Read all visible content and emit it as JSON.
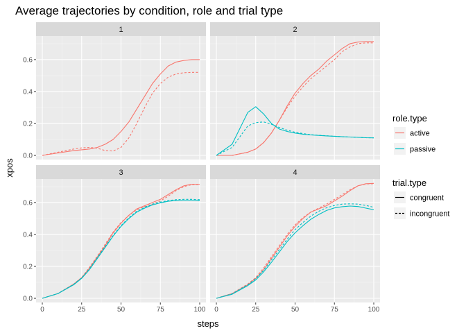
{
  "chart_data": {
    "type": "line",
    "title": "Average trajectories by condition, role and trial type",
    "xlabel": "steps",
    "ylabel": "xpos",
    "xlim": [
      0,
      100
    ],
    "ylim": [
      0,
      0.72
    ],
    "x_ticks": [
      0,
      25,
      50,
      75,
      100
    ],
    "y_ticks": [
      0.0,
      0.2,
      0.4,
      0.6
    ],
    "y_tick_labels": [
      "0.0",
      "0.2",
      "0.4",
      "0.6"
    ],
    "grid": true,
    "facet_layout": "2x2",
    "legend_placement": "right",
    "colors": {
      "active": "#F8766D",
      "passive": "#00BFC4"
    },
    "legends": [
      {
        "title": "role.type",
        "entries": [
          {
            "label": "active",
            "color": "#F8766D"
          },
          {
            "label": "passive",
            "color": "#00BFC4"
          }
        ]
      },
      {
        "title": "trial.type",
        "entries": [
          {
            "label": "congruent",
            "linetype": "solid"
          },
          {
            "label": "incongruent",
            "linetype": "dashed"
          }
        ]
      }
    ],
    "x": [
      0,
      10,
      20,
      25,
      30,
      35,
      40,
      45,
      50,
      55,
      60,
      65,
      70,
      75,
      80,
      85,
      90,
      95,
      100
    ],
    "panels": [
      {
        "label": "1",
        "series": [
          {
            "role": "active",
            "trial": "congruent",
            "values": [
              0.0,
              0.015,
              0.03,
              0.035,
              0.04,
              0.05,
              0.07,
              0.1,
              0.15,
              0.21,
              0.29,
              0.37,
              0.45,
              0.51,
              0.56,
              0.585,
              0.595,
              0.6,
              0.6
            ]
          },
          {
            "role": "active",
            "trial": "incongruent",
            "values": [
              0.0,
              0.02,
              0.04,
              0.047,
              0.05,
              0.045,
              0.03,
              0.028,
              0.05,
              0.11,
              0.2,
              0.3,
              0.39,
              0.45,
              0.49,
              0.51,
              0.518,
              0.52,
              0.52
            ]
          }
        ]
      },
      {
        "label": "2",
        "series": [
          {
            "role": "active",
            "trial": "congruent",
            "values": [
              0.0,
              0.0,
              0.02,
              0.04,
              0.08,
              0.14,
              0.22,
              0.31,
              0.39,
              0.45,
              0.5,
              0.54,
              0.59,
              0.63,
              0.67,
              0.7,
              0.71,
              0.713,
              0.713
            ]
          },
          {
            "role": "active",
            "trial": "incongruent",
            "values": [
              0.0,
              0.0,
              0.02,
              0.04,
              0.08,
              0.14,
              0.22,
              0.3,
              0.37,
              0.43,
              0.48,
              0.52,
              0.56,
              0.6,
              0.65,
              0.68,
              0.7,
              0.705,
              0.705
            ]
          },
          {
            "role": "passive",
            "trial": "congruent",
            "values": [
              0.0,
              0.07,
              0.27,
              0.305,
              0.26,
              0.2,
              0.165,
              0.15,
              0.14,
              0.133,
              0.128,
              0.125,
              0.122,
              0.12,
              0.117,
              0.115,
              0.113,
              0.111,
              0.11
            ]
          },
          {
            "role": "passive",
            "trial": "incongruent",
            "values": [
              0.0,
              0.05,
              0.185,
              0.205,
              0.21,
              0.195,
              0.175,
              0.158,
              0.145,
              0.137,
              0.13,
              0.126,
              0.123,
              0.12,
              0.117,
              0.115,
              0.113,
              0.111,
              0.11
            ]
          }
        ]
      },
      {
        "label": "3",
        "series": [
          {
            "role": "active",
            "trial": "congruent",
            "values": [
              0.0,
              0.03,
              0.09,
              0.13,
              0.19,
              0.26,
              0.33,
              0.41,
              0.47,
              0.52,
              0.56,
              0.58,
              0.6,
              0.62,
              0.65,
              0.68,
              0.705,
              0.715,
              0.715
            ]
          },
          {
            "role": "active",
            "trial": "incongruent",
            "values": [
              0.0,
              0.03,
              0.09,
              0.13,
              0.195,
              0.265,
              0.34,
              0.415,
              0.475,
              0.52,
              0.555,
              0.575,
              0.59,
              0.61,
              0.64,
              0.675,
              0.7,
              0.712,
              0.713
            ]
          },
          {
            "role": "passive",
            "trial": "congruent",
            "values": [
              0.0,
              0.03,
              0.085,
              0.125,
              0.18,
              0.25,
              0.32,
              0.39,
              0.45,
              0.5,
              0.54,
              0.565,
              0.585,
              0.598,
              0.608,
              0.613,
              0.615,
              0.615,
              0.612
            ]
          },
          {
            "role": "passive",
            "trial": "incongruent",
            "values": [
              0.0,
              0.03,
              0.088,
              0.128,
              0.185,
              0.255,
              0.325,
              0.395,
              0.455,
              0.505,
              0.545,
              0.57,
              0.59,
              0.603,
              0.612,
              0.618,
              0.62,
              0.62,
              0.618
            ]
          }
        ]
      },
      {
        "label": "4",
        "series": [
          {
            "role": "active",
            "trial": "congruent",
            "values": [
              0.0,
              0.03,
              0.085,
              0.125,
              0.18,
              0.25,
              0.32,
              0.39,
              0.45,
              0.5,
              0.54,
              0.56,
              0.58,
              0.61,
              0.64,
              0.675,
              0.705,
              0.718,
              0.72
            ]
          },
          {
            "role": "active",
            "trial": "incongruent",
            "values": [
              0.0,
              0.03,
              0.09,
              0.13,
              0.19,
              0.26,
              0.33,
              0.4,
              0.46,
              0.505,
              0.54,
              0.565,
              0.59,
              0.62,
              0.65,
              0.68,
              0.705,
              0.716,
              0.718
            ]
          },
          {
            "role": "passive",
            "trial": "congruent",
            "values": [
              0.0,
              0.025,
              0.08,
              0.115,
              0.165,
              0.225,
              0.29,
              0.355,
              0.41,
              0.455,
              0.495,
              0.525,
              0.55,
              0.566,
              0.574,
              0.578,
              0.575,
              0.565,
              0.555
            ]
          },
          {
            "role": "passive",
            "trial": "incongruent",
            "values": [
              0.0,
              0.028,
              0.085,
              0.123,
              0.175,
              0.24,
              0.305,
              0.37,
              0.43,
              0.475,
              0.515,
              0.545,
              0.567,
              0.582,
              0.59,
              0.592,
              0.59,
              0.582,
              0.57
            ]
          }
        ]
      }
    ]
  }
}
